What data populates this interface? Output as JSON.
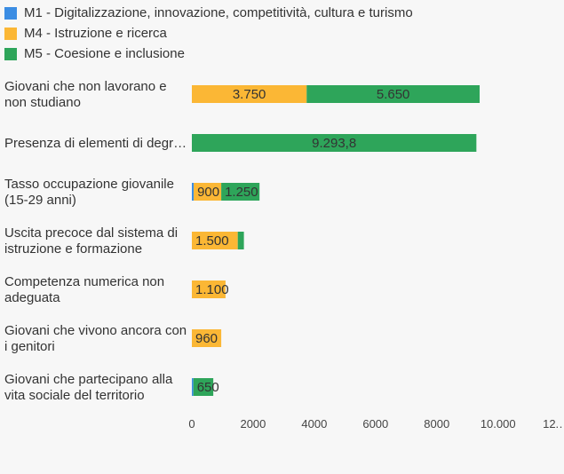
{
  "chart_data": {
    "type": "bar",
    "orientation": "horizontal",
    "stacked": true,
    "legend_position": "top-left",
    "grid": false,
    "xlim": [
      0,
      12000
    ],
    "x_ticks": [
      "0",
      "2000",
      "4000",
      "6000",
      "8000",
      "10.000",
      "12.…"
    ],
    "categories": [
      [
        "Giovani che non lavorano e",
        "non studiano"
      ],
      [
        "Presenza di elementi di degr…"
      ],
      [
        "Tasso occupazione giovanile",
        "(15-29 anni)"
      ],
      [
        "Uscita precoce dal sistema di",
        "istruzione e formazione"
      ],
      [
        "Competenza numerica non",
        "adeguata"
      ],
      [
        "Giovani che vivono ancora con",
        "i genitori"
      ],
      [
        "Giovani che partecipano alla",
        "vita sociale del territorio"
      ]
    ],
    "series": [
      {
        "name": "M1 - Digitalizzazione, innovazione, competitività, cultura e turismo",
        "color": "#3b8de3",
        "values": [
          0,
          0,
          60,
          0,
          0,
          0,
          50
        ],
        "labels": [
          "",
          "",
          "",
          "",
          "",
          "",
          ""
        ]
      },
      {
        "name": "M4 - Istruzione e ricerca",
        "color": "#fbb735",
        "values": [
          3750,
          0,
          900,
          1500,
          1100,
          960,
          0
        ],
        "labels": [
          "3.750",
          "",
          "900",
          "1.500",
          "1.100",
          "960",
          ""
        ]
      },
      {
        "name": "M5 - Coesione e inclusione",
        "color": "#2ea55a",
        "values": [
          5650,
          9293.8,
          1250,
          200,
          0,
          0,
          650
        ],
        "labels": [
          "5.650",
          "9.293,8",
          "1.250",
          "",
          "",
          "",
          "650"
        ]
      }
    ]
  }
}
